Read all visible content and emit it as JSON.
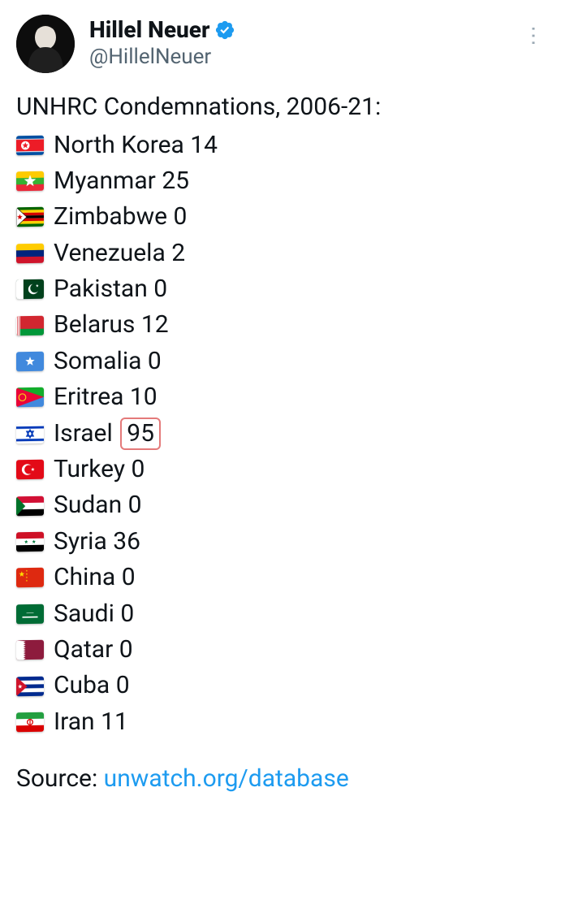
{
  "author": {
    "displayName": "Hillel Neuer",
    "handle": "@HillelNeuer",
    "verifiedColor": "#1d9bf0"
  },
  "title": "UNHRC Condemnations, 2006-21:",
  "items": [
    {
      "country": "North Korea",
      "count": "14",
      "flag": "kp",
      "highlight": false
    },
    {
      "country": "Myanmar",
      "count": "25",
      "flag": "mm",
      "highlight": false
    },
    {
      "country": "Zimbabwe",
      "count": "0",
      "flag": "zw",
      "highlight": false
    },
    {
      "country": "Venezuela",
      "count": "2",
      "flag": "ve",
      "highlight": false
    },
    {
      "country": "Pakistan",
      "count": "0",
      "flag": "pk",
      "highlight": false
    },
    {
      "country": "Belarus",
      "count": "12",
      "flag": "by",
      "highlight": false
    },
    {
      "country": "Somalia",
      "count": "0",
      "flag": "so",
      "highlight": false
    },
    {
      "country": "Eritrea",
      "count": "10",
      "flag": "er",
      "highlight": false
    },
    {
      "country": "Israel",
      "count": "95",
      "flag": "il",
      "highlight": true
    },
    {
      "country": "Turkey",
      "count": "0",
      "flag": "tr",
      "highlight": false
    },
    {
      "country": "Sudan",
      "count": "0",
      "flag": "sd",
      "highlight": false
    },
    {
      "country": "Syria",
      "count": "36",
      "flag": "sy",
      "highlight": false
    },
    {
      "country": "China",
      "count": "0",
      "flag": "cn",
      "highlight": false
    },
    {
      "country": "Saudi",
      "count": "0",
      "flag": "sa",
      "highlight": false
    },
    {
      "country": "Qatar",
      "count": "0",
      "flag": "qa",
      "highlight": false
    },
    {
      "country": "Cuba",
      "count": "0",
      "flag": "cu",
      "highlight": false
    },
    {
      "country": "Iran",
      "count": "11",
      "flag": "ir",
      "highlight": false
    }
  ],
  "sourceLabel": "Source: ",
  "sourceLinkText": "unwatch.org/database",
  "highlightBorderColor": "#e47a7a",
  "textColor": "#0f1419",
  "linkColor": "#1d9bf0",
  "mutedColor": "#536471",
  "flags": {
    "kp": {
      "bg": "#024fa2",
      "stripes": [
        [
          "#ffffff",
          "16%",
          "20%"
        ],
        [
          "#ed1c27",
          "20%",
          "80%"
        ],
        [
          "#ffffff",
          "80%",
          "84%"
        ]
      ],
      "star": true,
      "starDisc": "#ffffff",
      "starColor": "#ed1c27"
    },
    "mm": {
      "tricolorH": [
        "#fecb00",
        "#34b233",
        "#ea2839"
      ],
      "centerStar": "#ffffff"
    },
    "zw": {
      "bg": "#006400",
      "complex": true
    },
    "ve": {
      "tricolorH": [
        "#ffcc00",
        "#00247d",
        "#cf142b"
      ]
    },
    "pk": {
      "bg": "#01411c",
      "leftBar": "#ffffff",
      "symbolColor": "#ffffff"
    },
    "by": {
      "left": "#d22730",
      "bottom": "#009739",
      "orn": "#ffffff"
    },
    "so": {
      "bg": "#4189dd",
      "centerStar": "#ffffff"
    },
    "er": {
      "bg": "#12ad2b",
      "lower": "#4189dd",
      "tri": "#ea0437"
    },
    "il": {
      "bg": "#ffffff",
      "stripe": "#0038b8"
    },
    "tr": {
      "bg": "#e30a17",
      "symbolColor": "#ffffff"
    },
    "sd": {
      "tricolorH": [
        "#d21034",
        "#ffffff",
        "#000000"
      ],
      "hoist": "#007229"
    },
    "sy": {
      "tricolorH": [
        "#ce1126",
        "#ffffff",
        "#000000"
      ],
      "stars": "#007a3d"
    },
    "cn": {
      "bg": "#de2910",
      "star": "#ffde00"
    },
    "sa": {
      "bg": "#006c35",
      "symbolColor": "#ffffff"
    },
    "qa": {
      "left": "#ffffff",
      "right": "#8d1b3d"
    },
    "cu": {
      "stripes": [
        "#002a8f",
        "#ffffff"
      ],
      "tri": "#cf142b",
      "star": "#ffffff"
    },
    "ir": {
      "tricolorH": [
        "#239f40",
        "#ffffff",
        "#da0000"
      ],
      "emblem": "#da0000"
    }
  }
}
